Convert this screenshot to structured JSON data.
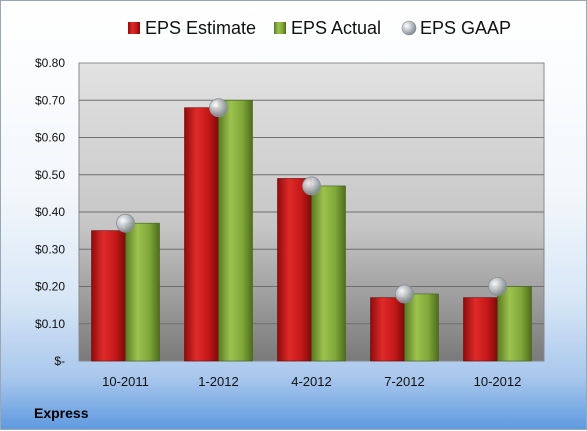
{
  "company": "Express",
  "chart_data": {
    "type": "bar",
    "categories": [
      "10-2011",
      "1-2012",
      "4-2012",
      "7-2012",
      "10-2012"
    ],
    "series": [
      {
        "name": "EPS Estimate",
        "values": [
          0.35,
          0.68,
          0.49,
          0.17,
          0.17
        ],
        "color": "#cc1a1a"
      },
      {
        "name": "EPS Actual",
        "values": [
          0.37,
          0.7,
          0.47,
          0.18,
          0.2
        ],
        "color": "#7fa43a"
      }
    ],
    "points": {
      "name": "EPS GAAP",
      "values": [
        0.37,
        0.68,
        0.47,
        0.18,
        0.2
      ],
      "color": "#a8b0b8"
    },
    "ylim": [
      0,
      0.8
    ],
    "yticks": [
      0,
      0.1,
      0.2,
      0.3,
      0.4,
      0.5,
      0.6,
      0.7,
      0.8
    ],
    "ytick_labels": [
      "$-",
      "$0.10",
      "$0.20",
      "$0.30",
      "$0.40",
      "$0.50",
      "$0.60",
      "$0.70",
      "$0.80"
    ],
    "legend_position": "top",
    "grid": true
  }
}
